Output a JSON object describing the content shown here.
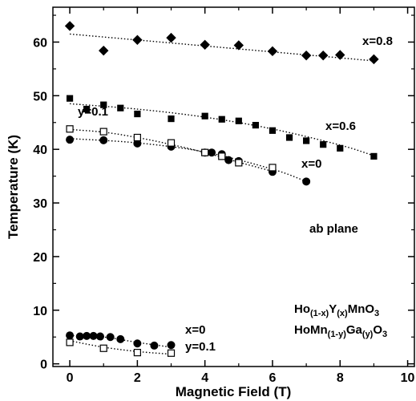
{
  "chart_data": {
    "type": "scatter",
    "xlabel": "Magnetic Field (T)",
    "ylabel": "Temperature (K)",
    "xlim": [
      -0.5,
      10.2
    ],
    "ylim": [
      -0.5,
      66.5
    ],
    "xticks": [
      "0",
      "2",
      "4",
      "6",
      "8",
      "10"
    ],
    "yticks": [
      "0",
      "10",
      "20",
      "30",
      "40",
      "50",
      "60"
    ],
    "grid": false,
    "annotations": {
      "ab_plane": "ab plane",
      "x08": "x=0.8",
      "x06": "x=0.6",
      "x0_upper": "x=0",
      "y01_upper": "y=0.1",
      "x0_lower": "x=0",
      "y01_lower": "y=0.1"
    },
    "legend": {
      "line1": {
        "a": "Ho",
        "b": "(1-x)",
        "c": "Y",
        "d": "(x)",
        "e": "MnO",
        "f": "3"
      },
      "line2": {
        "a": "HoMn",
        "b": "(1-y)",
        "c": "Ga",
        "d": "(y)",
        "e": "O",
        "f": "3"
      }
    },
    "series": [
      {
        "name": "x=0.8",
        "marker": "diamond",
        "fill": "filled",
        "x": [
          0,
          1,
          2,
          3,
          4,
          5,
          6,
          7,
          7.5,
          8,
          9
        ],
        "y": [
          63.0,
          58.4,
          60.4,
          60.8,
          59.5,
          59.4,
          58.3,
          57.5,
          57.5,
          57.6,
          56.8
        ],
        "fit": {
          "x": [
            0,
            9
          ],
          "y": [
            61.5,
            56.5
          ]
        }
      },
      {
        "name": "x=0.6",
        "marker": "square",
        "fill": "filled",
        "x": [
          0,
          0.5,
          1,
          1.5,
          2,
          3,
          4,
          4.5,
          5,
          5.5,
          6,
          6.5,
          7,
          7.5,
          8,
          9
        ],
        "y": [
          49.5,
          47.5,
          48.3,
          47.7,
          46.6,
          45.7,
          46.2,
          45.6,
          45.3,
          44.5,
          43.5,
          42.2,
          41.6,
          40.9,
          40.2,
          38.7
        ],
        "fit": {
          "x": [
            0,
            2,
            4,
            6,
            8,
            9
          ],
          "y": [
            48.5,
            47.5,
            46.0,
            43.8,
            40.8,
            38.8
          ]
        }
      },
      {
        "name": "x=0",
        "marker": "circle",
        "fill": "filled",
        "x": [
          0,
          1,
          2,
          3,
          4,
          4.2,
          4.5,
          4.7,
          5,
          6,
          7
        ],
        "y": [
          41.8,
          41.7,
          41.1,
          40.5,
          39.4,
          39.4,
          39.1,
          38.0,
          37.8,
          35.8,
          34.0
        ],
        "fit": {
          "x": [
            0,
            2,
            4,
            6,
            7
          ],
          "y": [
            42.0,
            41.2,
            39.5,
            36.3,
            34.0
          ]
        }
      },
      {
        "name": "y=0.1",
        "marker": "square",
        "fill": "open",
        "x": [
          0,
          1,
          2,
          3,
          4,
          4.5,
          5,
          6
        ],
        "y": [
          43.8,
          43.3,
          42.2,
          41.2,
          39.4,
          38.7,
          37.5,
          36.6
        ],
        "fit": {
          "x": [
            0,
            1,
            2,
            3,
            4,
            5,
            6
          ],
          "y": [
            43.7,
            43.2,
            42.2,
            40.9,
            39.4,
            37.6,
            35.9
          ]
        }
      },
      {
        "name": "x=0",
        "marker": "circle",
        "fill": "filled",
        "x": [
          0,
          0.3,
          0.5,
          0.7,
          0.9,
          1.2,
          1.5,
          2,
          2.5,
          3
        ],
        "y": [
          5.3,
          5.1,
          5.2,
          5.2,
          5.1,
          5.0,
          4.6,
          3.8,
          3.4,
          3.5
        ],
        "fit": {
          "x": [
            0,
            1,
            2,
            3
          ],
          "y": [
            5.3,
            5.0,
            4.0,
            3.1
          ]
        }
      },
      {
        "name": "y=0.1",
        "marker": "square",
        "fill": "open",
        "x": [
          0,
          1,
          2,
          3
        ],
        "y": [
          4.0,
          2.9,
          2.1,
          2.0
        ],
        "fit": {
          "x": [
            0,
            1,
            2,
            3
          ],
          "y": [
            4.3,
            3.1,
            2.3,
            1.8
          ]
        }
      }
    ]
  }
}
